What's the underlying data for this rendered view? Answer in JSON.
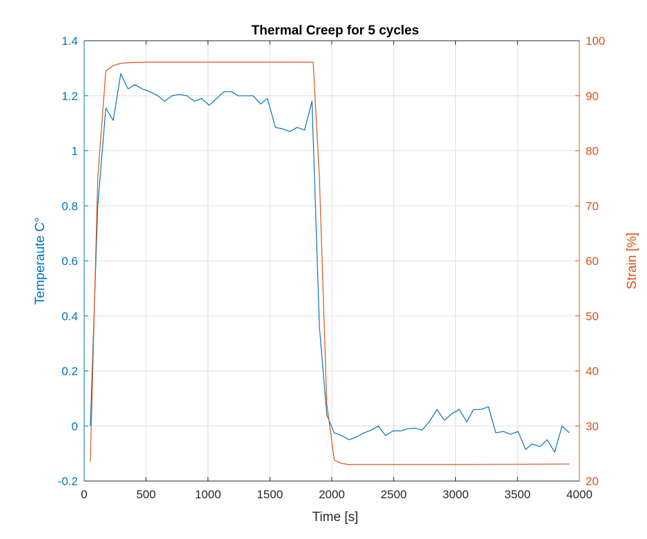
{
  "chart_data": {
    "type": "line",
    "title": "Thermal Creep for 5 cycles",
    "xlabel": "Time [s]",
    "ylabel_left": "Temperaute C°",
    "ylabel_right": "Strain [%]",
    "xlim": [
      0,
      4000
    ],
    "ylim_left": [
      -0.2,
      1.4
    ],
    "ylim_right": [
      20,
      100
    ],
    "xticks": [
      "0",
      "500",
      "1000",
      "1500",
      "2000",
      "2500",
      "3000",
      "3500",
      "4000"
    ],
    "yticks_left": [
      "-0.2",
      "0",
      "0.2",
      "0.4",
      "0.6",
      "0.8",
      "1",
      "1.2",
      "1.4"
    ],
    "yticks_right": [
      "20",
      "30",
      "40",
      "50",
      "60",
      "70",
      "80",
      "90",
      "100"
    ],
    "grid": true,
    "colors": {
      "left": "#0072bd",
      "right": "#d95319"
    },
    "series": [
      {
        "axis": "left",
        "x": [
          50,
          110,
          175,
          235,
          295,
          355,
          410,
          470,
          530,
          595,
          650,
          710,
          770,
          830,
          890,
          950,
          1010,
          1070,
          1130,
          1190,
          1245,
          1305,
          1365,
          1425,
          1480,
          1545,
          1600,
          1660,
          1720,
          1780,
          1840,
          1900,
          1960,
          2020,
          2080,
          2140,
          2200,
          2260,
          2320,
          2375,
          2435,
          2495,
          2555,
          2615,
          2675,
          2730,
          2790,
          2850,
          2910,
          2970,
          3030,
          3090,
          3145,
          3205,
          3265,
          3325,
          3385,
          3445,
          3505,
          3565,
          3620,
          3680,
          3740,
          3800,
          3860,
          3920
        ],
        "y": [
          0.0,
          0.8,
          1.155,
          1.11,
          1.28,
          1.225,
          1.24,
          1.225,
          1.215,
          1.2,
          1.18,
          1.2,
          1.205,
          1.2,
          1.18,
          1.19,
          1.165,
          1.19,
          1.215,
          1.215,
          1.2,
          1.2,
          1.2,
          1.17,
          1.19,
          1.085,
          1.08,
          1.07,
          1.085,
          1.075,
          1.18,
          0.36,
          0.04,
          -0.025,
          -0.035,
          -0.05,
          -0.04,
          -0.025,
          -0.015,
          0.0,
          -0.035,
          -0.018,
          -0.018,
          -0.01,
          -0.008,
          -0.015,
          0.017,
          0.06,
          0.02,
          0.045,
          0.06,
          0.015,
          0.06,
          0.06,
          0.07,
          -0.025,
          -0.02,
          -0.03,
          -0.02,
          -0.085,
          -0.065,
          -0.075,
          -0.05,
          -0.095,
          0.0,
          -0.025
        ]
      },
      {
        "axis": "right",
        "x": [
          50,
          110,
          175,
          235,
          295,
          355,
          410,
          470,
          530,
          595,
          800,
          1000,
          1200,
          1400,
          1600,
          1800,
          1850,
          1900,
          1960,
          2020,
          2080,
          2140,
          2200,
          2500,
          3000,
          3500,
          3920
        ],
        "y": [
          23.5,
          75,
          94.5,
          95.5,
          95.9,
          96.0,
          96.05,
          96.1,
          96.1,
          96.1,
          96.1,
          96.1,
          96.1,
          96.1,
          96.1,
          96.1,
          96.1,
          75,
          34,
          23.8,
          23.2,
          23.0,
          23.0,
          23.0,
          23.0,
          23.05,
          23.1
        ]
      }
    ]
  }
}
